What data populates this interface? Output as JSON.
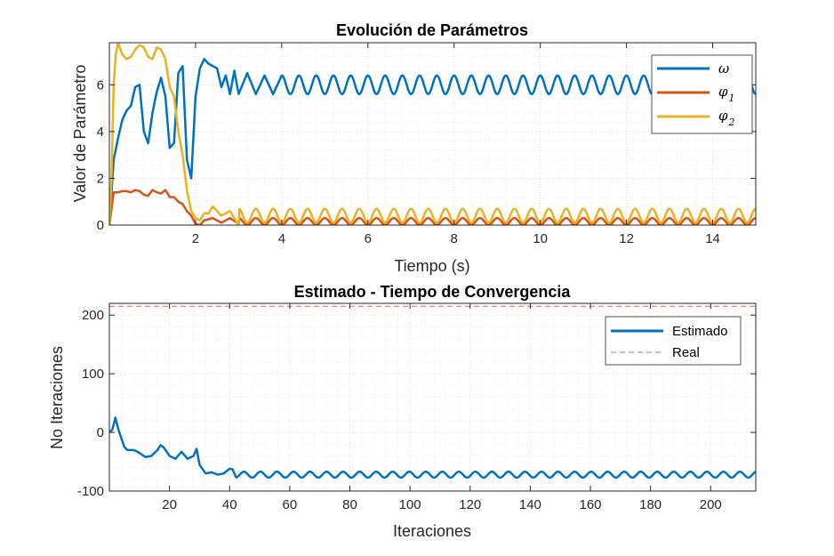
{
  "colors": {
    "blue": "#0072BD",
    "orange": "#D95319",
    "yellow": "#EDB120",
    "real": "#E06060",
    "axis": "#262626",
    "grid": "#DCDCDC"
  },
  "chart_data": [
    {
      "type": "line",
      "title": "Evolución de Parámetros",
      "xlabel": "Tiempo (s)",
      "ylabel": "Valor de Parámetro",
      "xlim": [
        0,
        15
      ],
      "ylim": [
        0,
        7.8
      ],
      "xticks": [
        2,
        4,
        6,
        8,
        10,
        12,
        14
      ],
      "yticks": [
        0,
        2,
        4,
        6
      ],
      "grid": "minor",
      "legend_position": "top-right",
      "series": [
        {
          "name": "ω",
          "legend_symbol": "ω",
          "legend_sub": "",
          "color": "#0072BD",
          "x": [
            0,
            0.1,
            0.2,
            0.3,
            0.4,
            0.5,
            0.6,
            0.7,
            0.8,
            0.9,
            1.0,
            1.1,
            1.2,
            1.3,
            1.4,
            1.5,
            1.6,
            1.7,
            1.8,
            1.9,
            2.0,
            2.1,
            2.2,
            2.3,
            2.4,
            2.5,
            2.6,
            2.7,
            2.8,
            2.9,
            3.0,
            3.2,
            3.4,
            3.6,
            3.8,
            4.0
          ],
          "y": [
            0,
            2.8,
            3.7,
            4.5,
            4.9,
            5.1,
            5.9,
            6.0,
            4.0,
            3.5,
            4.8,
            5.7,
            6.3,
            5.5,
            3.3,
            3.5,
            6.5,
            6.8,
            2.8,
            2.0,
            5.5,
            6.7,
            7.1,
            6.9,
            6.8,
            6.7,
            5.9,
            6.4,
            5.6,
            6.6,
            5.6,
            6.5,
            5.6,
            6.4,
            5.6,
            6.4
          ]
        },
        {
          "name": "φ1",
          "legend_symbol": "φ",
          "legend_sub": "1",
          "color": "#D95319",
          "x": [
            0,
            0.1,
            0.2,
            0.3,
            0.4,
            0.5,
            0.6,
            0.7,
            0.8,
            0.9,
            1.0,
            1.1,
            1.2,
            1.3,
            1.4,
            1.5,
            1.6,
            1.7,
            1.8,
            1.9,
            2.0,
            2.1,
            2.2,
            2.4,
            2.6,
            2.8,
            3.0
          ],
          "y": [
            0,
            1.4,
            1.4,
            1.45,
            1.45,
            1.4,
            1.5,
            1.45,
            1.3,
            1.25,
            1.5,
            1.4,
            1.35,
            1.5,
            1.2,
            1.2,
            1.0,
            0.9,
            0.6,
            0.4,
            0.05,
            0.0,
            0.2,
            0.3,
            0.1,
            0.3,
            0.05
          ]
        },
        {
          "name": "φ2",
          "legend_symbol": "φ",
          "legend_sub": "2",
          "color": "#EDB120",
          "x": [
            0,
            0.05,
            0.1,
            0.15,
            0.2,
            0.3,
            0.4,
            0.5,
            0.6,
            0.7,
            0.8,
            0.9,
            1.0,
            1.1,
            1.2,
            1.3,
            1.4,
            1.5,
            1.6,
            1.7,
            1.8,
            1.9,
            2.0,
            2.1,
            2.2,
            2.3,
            2.4,
            2.6,
            2.8,
            3.0
          ],
          "y": [
            0,
            2.0,
            6.0,
            7.3,
            7.8,
            7.3,
            7.1,
            7.2,
            7.5,
            7.7,
            7.6,
            7.2,
            7.1,
            7.6,
            7.5,
            7.1,
            5.9,
            5.5,
            4.0,
            3.0,
            1.5,
            0.6,
            0.3,
            0.2,
            0.5,
            0.5,
            0.8,
            0.4,
            0.6,
            0.0
          ]
        }
      ]
    },
    {
      "type": "line",
      "title": "Estimado - Tiempo de Convergencia",
      "xlabel": "Iteraciones",
      "ylabel": "No Iteraciones",
      "xlim": [
        0,
        215
      ],
      "ylim": [
        -100,
        220
      ],
      "xticks": [
        20,
        40,
        60,
        80,
        100,
        120,
        140,
        160,
        180,
        200
      ],
      "yticks": [
        -100,
        0,
        100,
        200
      ],
      "grid": "minor",
      "legend_position": "top-right",
      "series": [
        {
          "name": "Estimado",
          "color": "#0072BD",
          "x": [
            0,
            1,
            2,
            3,
            4,
            5,
            6,
            7,
            8,
            9,
            10,
            12,
            14,
            16,
            17,
            18,
            20,
            22,
            24,
            26,
            28,
            29,
            30,
            32,
            34,
            36,
            38,
            40,
            41,
            42
          ],
          "y": [
            0,
            5,
            25,
            5,
            -10,
            -25,
            -30,
            -30,
            -30,
            -32,
            -35,
            -42,
            -40,
            -30,
            -22,
            -25,
            -40,
            -45,
            -33,
            -45,
            -40,
            -28,
            -55,
            -70,
            -68,
            -72,
            -70,
            -62,
            -63,
            -75
          ]
        },
        {
          "name": "Real",
          "color": "#E06060",
          "style": "dashed",
          "value": 215
        }
      ]
    }
  ]
}
